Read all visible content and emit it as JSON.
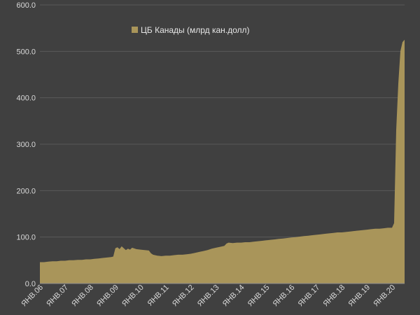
{
  "chart_data": {
    "type": "area",
    "title": "",
    "xlabel": "",
    "ylabel": "",
    "ylim": [
      0,
      600
    ],
    "yticks": [
      "0.0",
      "100.0",
      "200.0",
      "300.0",
      "400.0",
      "500.0",
      "600.0"
    ],
    "xticks": [
      {
        "label": "ЯНВ.06",
        "t": 0
      },
      {
        "label": "ЯНВ.07",
        "t": 12
      },
      {
        "label": "ЯНВ.08",
        "t": 24
      },
      {
        "label": "ЯНВ.09",
        "t": 36
      },
      {
        "label": "ЯНВ.10",
        "t": 48
      },
      {
        "label": "ЯНВ.11",
        "t": 60
      },
      {
        "label": "ЯНВ.12",
        "t": 72
      },
      {
        "label": "ЯНВ.13",
        "t": 84
      },
      {
        "label": "ЯНВ.14",
        "t": 96
      },
      {
        "label": "ЯНВ.15",
        "t": 108
      },
      {
        "label": "ЯНВ.16",
        "t": 120
      },
      {
        "label": "ЯНВ.17",
        "t": 132
      },
      {
        "label": "ЯНВ.18",
        "t": 144
      },
      {
        "label": "ЯНВ.19",
        "t": 156
      },
      {
        "label": "ЯНВ.20",
        "t": 168
      }
    ],
    "legend_position": "top-center",
    "series": [
      {
        "name": "ЦБ Канады (млрд кан.долл)",
        "color": "#a9955a",
        "points": [
          [
            0,
            46
          ],
          [
            2,
            46
          ],
          [
            4,
            47
          ],
          [
            6,
            48
          ],
          [
            8,
            48
          ],
          [
            10,
            49
          ],
          [
            12,
            49
          ],
          [
            14,
            50
          ],
          [
            16,
            50
          ],
          [
            18,
            51
          ],
          [
            20,
            51
          ],
          [
            22,
            52
          ],
          [
            24,
            52
          ],
          [
            26,
            53
          ],
          [
            28,
            54
          ],
          [
            30,
            55
          ],
          [
            32,
            56
          ],
          [
            34,
            57
          ],
          [
            35,
            58
          ],
          [
            36,
            76
          ],
          [
            37,
            78
          ],
          [
            38,
            74
          ],
          [
            39,
            80
          ],
          [
            40,
            76
          ],
          [
            41,
            72
          ],
          [
            42,
            75
          ],
          [
            43,
            73
          ],
          [
            44,
            77
          ],
          [
            46,
            74
          ],
          [
            48,
            73
          ],
          [
            50,
            72
          ],
          [
            52,
            71
          ],
          [
            53,
            65
          ],
          [
            54,
            62
          ],
          [
            56,
            60
          ],
          [
            58,
            59
          ],
          [
            60,
            60
          ],
          [
            62,
            60
          ],
          [
            64,
            61
          ],
          [
            66,
            62
          ],
          [
            68,
            62
          ],
          [
            70,
            63
          ],
          [
            72,
            64
          ],
          [
            74,
            66
          ],
          [
            76,
            68
          ],
          [
            78,
            70
          ],
          [
            80,
            72
          ],
          [
            82,
            75
          ],
          [
            84,
            77
          ],
          [
            86,
            79
          ],
          [
            88,
            81
          ],
          [
            89,
            86
          ],
          [
            90,
            88
          ],
          [
            92,
            87
          ],
          [
            94,
            88
          ],
          [
            96,
            88
          ],
          [
            98,
            89
          ],
          [
            100,
            89
          ],
          [
            102,
            90
          ],
          [
            104,
            91
          ],
          [
            106,
            92
          ],
          [
            108,
            93
          ],
          [
            110,
            94
          ],
          [
            112,
            95
          ],
          [
            114,
            96
          ],
          [
            116,
            97
          ],
          [
            118,
            98
          ],
          [
            120,
            99
          ],
          [
            122,
            100
          ],
          [
            124,
            101
          ],
          [
            126,
            102
          ],
          [
            128,
            103
          ],
          [
            130,
            104
          ],
          [
            132,
            105
          ],
          [
            134,
            106
          ],
          [
            136,
            107
          ],
          [
            138,
            108
          ],
          [
            140,
            109
          ],
          [
            142,
            110
          ],
          [
            144,
            110
          ],
          [
            146,
            111
          ],
          [
            148,
            112
          ],
          [
            150,
            113
          ],
          [
            152,
            114
          ],
          [
            154,
            115
          ],
          [
            156,
            116
          ],
          [
            158,
            117
          ],
          [
            160,
            118
          ],
          [
            162,
            118
          ],
          [
            164,
            119
          ],
          [
            166,
            120
          ],
          [
            168,
            120
          ],
          [
            169,
            130
          ],
          [
            170,
            330
          ],
          [
            171,
            430
          ],
          [
            172,
            500
          ],
          [
            173,
            520
          ],
          [
            174,
            525
          ]
        ]
      }
    ]
  }
}
